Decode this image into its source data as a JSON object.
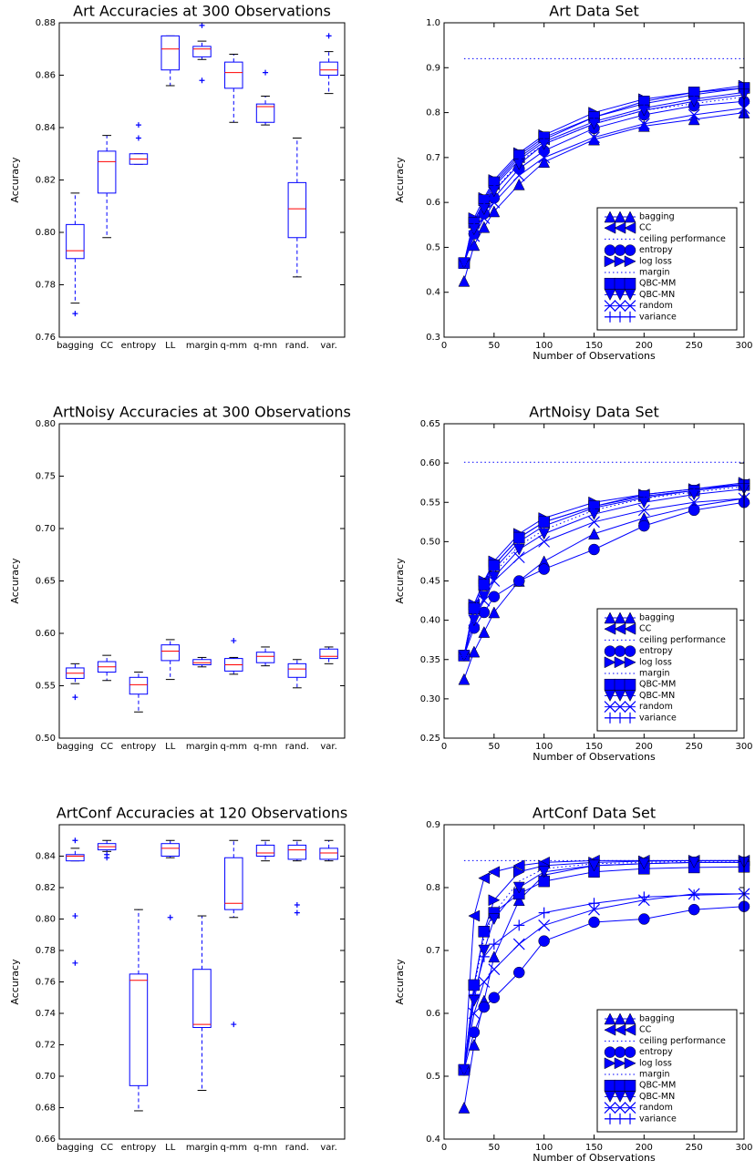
{
  "chart_data": [
    {
      "type": "box",
      "title": "Art Accuracies at 300 Observations",
      "ylabel": "Accuracy",
      "color": "#0000ff",
      "median_color": "#ff0000",
      "categories": [
        "bagging",
        "CC",
        "entropy",
        "LL",
        "margin",
        "q-mm",
        "q-mn",
        "rand.",
        "var."
      ],
      "boxes": [
        {
          "min": 0.773,
          "q1": 0.79,
          "median": 0.793,
          "q3": 0.803,
          "max": 0.815,
          "outliers": [
            0.769
          ]
        },
        {
          "min": 0.798,
          "q1": 0.815,
          "median": 0.827,
          "q3": 0.831,
          "max": 0.837
        },
        {
          "min": 0.826,
          "q1": 0.826,
          "median": 0.828,
          "q3": 0.83,
          "max": 0.83,
          "outliers": [
            0.836,
            0.841
          ]
        },
        {
          "min": 0.856,
          "q1": 0.862,
          "median": 0.87,
          "q3": 0.875,
          "max": 0.875
        },
        {
          "min": 0.866,
          "q1": 0.867,
          "median": 0.87,
          "q3": 0.871,
          "max": 0.873,
          "outliers": [
            0.858,
            0.879
          ]
        },
        {
          "min": 0.842,
          "q1": 0.855,
          "median": 0.861,
          "q3": 0.865,
          "max": 0.868
        },
        {
          "min": 0.841,
          "q1": 0.842,
          "median": 0.848,
          "q3": 0.849,
          "max": 0.852,
          "outliers": [
            0.861
          ]
        },
        {
          "min": 0.783,
          "q1": 0.798,
          "median": 0.809,
          "q3": 0.819,
          "max": 0.836
        },
        {
          "min": 0.853,
          "q1": 0.86,
          "median": 0.862,
          "q3": 0.865,
          "max": 0.869,
          "outliers": [
            0.875
          ]
        }
      ],
      "ylim": [
        0.76,
        0.88
      ],
      "yticks": [
        0.76,
        0.78,
        {
          "value": 0.8,
          "label": "0.80"
        },
        0.82,
        0.84,
        0.86,
        0.88
      ]
    },
    {
      "type": "line",
      "title": "Art Data Set",
      "xlabel": "Number of Observations",
      "ylabel": "Accuracy",
      "legend": "lower right",
      "x": [
        20,
        30,
        40,
        50,
        75,
        100,
        150,
        200,
        250,
        300
      ],
      "series": [
        {
          "name": "bagging",
          "color": "#0000ff",
          "marker": "triangle-up",
          "values": [
            0.425,
            0.505,
            0.545,
            0.58,
            0.64,
            0.69,
            0.74,
            0.77,
            0.785,
            0.8
          ]
        },
        {
          "name": "CC",
          "color": "#0000ff",
          "marker": "triangle-left",
          "values": [
            0.465,
            0.56,
            0.6,
            0.64,
            0.7,
            0.74,
            0.79,
            0.82,
            0.84,
            0.855
          ]
        },
        {
          "name": "ceiling performance",
          "color": "#0000ff",
          "marker": "none",
          "linestyle": "dotted",
          "values": [
            0.92,
            0.92,
            0.92,
            0.92,
            0.92,
            0.92,
            0.92,
            0.92,
            0.92,
            0.92
          ]
        },
        {
          "name": "entropy",
          "color": "#0000ff",
          "marker": "circle",
          "values": [
            0.465,
            0.53,
            0.575,
            0.61,
            0.675,
            0.715,
            0.765,
            0.795,
            0.815,
            0.825
          ]
        },
        {
          "name": "log loss",
          "color": "#0000ff",
          "marker": "triangle-right",
          "values": [
            0.465,
            0.565,
            0.61,
            0.65,
            0.71,
            0.75,
            0.8,
            0.83,
            0.845,
            0.86
          ]
        },
        {
          "name": "margin",
          "color": "#0000ff",
          "marker": "none",
          "linestyle": "dotted",
          "values": [
            0.465,
            0.545,
            0.59,
            0.625,
            0.69,
            0.73,
            0.775,
            0.805,
            0.82,
            0.835
          ]
        },
        {
          "name": "QBC-MM",
          "color": "#0000ff",
          "marker": "square",
          "values": [
            0.465,
            0.555,
            0.605,
            0.645,
            0.705,
            0.745,
            0.79,
            0.825,
            0.845,
            0.855
          ]
        },
        {
          "name": "QBC-MN",
          "color": "#0000ff",
          "marker": "triangle-down",
          "values": [
            0.465,
            0.54,
            0.585,
            0.625,
            0.685,
            0.73,
            0.775,
            0.805,
            0.825,
            0.84
          ]
        },
        {
          "name": "random",
          "color": "#0000ff",
          "marker": "x",
          "values": [
            0.465,
            0.525,
            0.565,
            0.6,
            0.66,
            0.7,
            0.745,
            0.775,
            0.795,
            0.81
          ]
        },
        {
          "name": "variance",
          "color": "#0000ff",
          "marker": "plus",
          "values": [
            0.465,
            0.55,
            0.595,
            0.635,
            0.695,
            0.735,
            0.78,
            0.81,
            0.83,
            0.845
          ]
        }
      ],
      "xlim": [
        0,
        300
      ],
      "xticks": [
        0,
        50,
        100,
        150,
        200,
        250,
        300
      ],
      "ylim": [
        0.3,
        1.0
      ],
      "yticks": [
        0.3,
        0.4,
        0.5,
        0.6,
        0.7,
        0.8,
        0.9,
        {
          "value": 1.0,
          "label": "1.0"
        }
      ]
    },
    {
      "type": "box",
      "title": "ArtNoisy Accuracies at 300 Observations",
      "ylabel": "Accuracy",
      "color": "#0000ff",
      "median_color": "#ff0000",
      "categories": [
        "bagging",
        "CC",
        "entropy",
        "LL",
        "margin",
        "q-mm",
        "q-mn",
        "rand.",
        "var."
      ],
      "boxes": [
        {
          "min": 0.552,
          "q1": 0.557,
          "median": 0.562,
          "q3": 0.567,
          "max": 0.571,
          "outliers": [
            0.539
          ]
        },
        {
          "min": 0.555,
          "q1": 0.563,
          "median": 0.568,
          "q3": 0.573,
          "max": 0.579
        },
        {
          "min": 0.525,
          "q1": 0.542,
          "median": 0.551,
          "q3": 0.558,
          "max": 0.563
        },
        {
          "min": 0.556,
          "q1": 0.574,
          "median": 0.583,
          "q3": 0.589,
          "max": 0.594
        },
        {
          "min": 0.568,
          "q1": 0.57,
          "median": 0.572,
          "q3": 0.575,
          "max": 0.577
        },
        {
          "min": 0.561,
          "q1": 0.564,
          "median": 0.57,
          "q3": 0.576,
          "max": 0.577,
          "outliers": [
            0.593
          ]
        },
        {
          "min": 0.569,
          "q1": 0.572,
          "median": 0.578,
          "q3": 0.582,
          "max": 0.587
        },
        {
          "min": 0.548,
          "q1": 0.558,
          "median": 0.566,
          "q3": 0.571,
          "max": 0.575
        },
        {
          "min": 0.571,
          "q1": 0.576,
          "median": 0.578,
          "q3": 0.585,
          "max": 0.587
        }
      ],
      "ylim": [
        0.5,
        0.8
      ],
      "yticks": [
        {
          "value": 0.5,
          "label": "0.50"
        },
        0.55,
        {
          "value": 0.6,
          "label": "0.60"
        },
        0.65,
        {
          "value": 0.7,
          "label": "0.70"
        },
        0.75,
        {
          "value": 0.8,
          "label": "0.80"
        }
      ]
    },
    {
      "type": "line",
      "title": "ArtNoisy Data Set",
      "xlabel": "Number of Observations",
      "ylabel": "Accuracy",
      "legend": "lower right",
      "x": [
        20,
        30,
        40,
        50,
        75,
        100,
        150,
        200,
        250,
        300
      ],
      "series": [
        {
          "name": "bagging",
          "color": "#0000ff",
          "marker": "triangle-up",
          "values": [
            0.325,
            0.36,
            0.385,
            0.41,
            0.45,
            0.475,
            0.51,
            0.53,
            0.545,
            0.555
          ]
        },
        {
          "name": "CC",
          "color": "#0000ff",
          "marker": "triangle-left",
          "values": [
            0.355,
            0.42,
            0.45,
            0.47,
            0.505,
            0.525,
            0.545,
            0.56,
            0.567,
            0.573
          ]
        },
        {
          "name": "ceiling performance",
          "color": "#0000ff",
          "marker": "none",
          "linestyle": "dotted",
          "values": [
            0.601,
            0.601,
            0.601,
            0.601,
            0.601,
            0.601,
            0.601,
            0.601,
            0.601,
            0.601
          ]
        },
        {
          "name": "entropy",
          "color": "#0000ff",
          "marker": "circle",
          "values": [
            0.355,
            0.39,
            0.41,
            0.43,
            0.45,
            0.465,
            0.49,
            0.52,
            0.54,
            0.55
          ]
        },
        {
          "name": "log loss",
          "color": "#0000ff",
          "marker": "triangle-right",
          "values": [
            0.355,
            0.42,
            0.45,
            0.475,
            0.51,
            0.53,
            0.55,
            0.56,
            0.567,
            0.575
          ]
        },
        {
          "name": "margin",
          "color": "#0000ff",
          "marker": "none",
          "linestyle": "dotted",
          "values": [
            0.355,
            0.41,
            0.44,
            0.46,
            0.495,
            0.515,
            0.54,
            0.555,
            0.563,
            0.57
          ]
        },
        {
          "name": "QBC-MM",
          "color": "#0000ff",
          "marker": "square",
          "values": [
            0.355,
            0.415,
            0.445,
            0.47,
            0.505,
            0.525,
            0.545,
            0.558,
            0.565,
            0.572
          ]
        },
        {
          "name": "QBC-MN",
          "color": "#0000ff",
          "marker": "triangle-down",
          "values": [
            0.355,
            0.4,
            0.43,
            0.455,
            0.49,
            0.51,
            0.535,
            0.55,
            0.56,
            0.567
          ]
        },
        {
          "name": "random",
          "color": "#0000ff",
          "marker": "x",
          "values": [
            0.355,
            0.4,
            0.425,
            0.45,
            0.48,
            0.5,
            0.525,
            0.54,
            0.55,
            0.555
          ]
        },
        {
          "name": "variance",
          "color": "#0000ff",
          "marker": "plus",
          "values": [
            0.355,
            0.415,
            0.445,
            0.465,
            0.5,
            0.52,
            0.543,
            0.556,
            0.565,
            0.573
          ]
        }
      ],
      "xlim": [
        0,
        300
      ],
      "xticks": [
        0,
        50,
        100,
        150,
        200,
        250,
        300
      ],
      "ylim": [
        0.25,
        0.65
      ],
      "yticks": [
        0.25,
        {
          "value": 0.3,
          "label": "0.30"
        },
        0.35,
        {
          "value": 0.4,
          "label": "0.40"
        },
        0.45,
        {
          "value": 0.5,
          "label": "0.50"
        },
        0.55,
        {
          "value": 0.6,
          "label": "0.60"
        },
        0.65
      ]
    },
    {
      "type": "box",
      "title": "ArtConf Accuracies at 120 Observations",
      "ylabel": "Accuracy",
      "color": "#0000ff",
      "median_color": "#ff0000",
      "categories": [
        "bagging",
        "CC",
        "entropy",
        "LL",
        "margin",
        "q-mm",
        "q-mn",
        "rand.",
        "var."
      ],
      "boxes": [
        {
          "min": 0.837,
          "q1": 0.837,
          "median": 0.84,
          "q3": 0.841,
          "max": 0.845,
          "outliers": [
            0.772,
            0.802,
            0.85
          ]
        },
        {
          "min": 0.843,
          "q1": 0.844,
          "median": 0.846,
          "q3": 0.848,
          "max": 0.85,
          "outliers": [
            0.839,
            0.841
          ]
        },
        {
          "min": 0.678,
          "q1": 0.694,
          "median": 0.761,
          "q3": 0.765,
          "max": 0.806
        },
        {
          "min": 0.839,
          "q1": 0.84,
          "median": 0.845,
          "q3": 0.848,
          "max": 0.85,
          "outliers": [
            0.801
          ]
        },
        {
          "min": 0.691,
          "q1": 0.731,
          "median": 0.733,
          "q3": 0.768,
          "max": 0.802
        },
        {
          "min": 0.801,
          "q1": 0.806,
          "median": 0.81,
          "q3": 0.839,
          "max": 0.85,
          "outliers": [
            0.733
          ]
        },
        {
          "min": 0.837,
          "q1": 0.84,
          "median": 0.842,
          "q3": 0.847,
          "max": 0.85
        },
        {
          "min": 0.837,
          "q1": 0.838,
          "median": 0.844,
          "q3": 0.847,
          "max": 0.85,
          "outliers": [
            0.804,
            0.809
          ]
        },
        {
          "min": 0.837,
          "q1": 0.838,
          "median": 0.842,
          "q3": 0.845,
          "max": 0.85
        }
      ],
      "ylim": [
        0.66,
        0.86
      ],
      "yticks": [
        0.66,
        0.68,
        {
          "value": 0.7,
          "label": "0.70"
        },
        0.72,
        0.74,
        0.76,
        0.78,
        {
          "value": 0.8,
          "label": "0.80"
        },
        0.82,
        0.84
      ]
    },
    {
      "type": "line",
      "title": "ArtConf Data Set",
      "xlabel": "Number of Observations",
      "ylabel": "Accuracy",
      "legend": "lower right",
      "x": [
        20,
        30,
        40,
        50,
        75,
        100,
        150,
        200,
        250,
        300
      ],
      "series": [
        {
          "name": "bagging",
          "color": "#0000ff",
          "marker": "triangle-up",
          "values": [
            0.45,
            0.55,
            0.62,
            0.69,
            0.78,
            0.82,
            0.835,
            0.838,
            0.84,
            0.84
          ]
        },
        {
          "name": "CC",
          "color": "#0000ff",
          "marker": "triangle-left",
          "values": [
            0.51,
            0.755,
            0.815,
            0.825,
            0.835,
            0.84,
            0.843,
            0.843,
            0.843,
            0.843
          ]
        },
        {
          "name": "ceiling performance",
          "color": "#0000ff",
          "marker": "none",
          "linestyle": "dotted",
          "values": [
            0.843,
            0.843,
            0.843,
            0.843,
            0.843,
            0.843,
            0.843,
            0.843,
            0.843,
            0.843
          ]
        },
        {
          "name": "entropy",
          "color": "#0000ff",
          "marker": "circle",
          "values": [
            0.51,
            0.57,
            0.61,
            0.625,
            0.665,
            0.715,
            0.745,
            0.75,
            0.765,
            0.77
          ]
        },
        {
          "name": "log loss",
          "color": "#0000ff",
          "marker": "triangle-right",
          "values": [
            0.51,
            0.645,
            0.73,
            0.78,
            0.825,
            0.835,
            0.84,
            0.842,
            0.843,
            0.843
          ]
        },
        {
          "name": "margin",
          "color": "#0000ff",
          "marker": "none",
          "linestyle": "dotted",
          "values": [
            0.51,
            0.64,
            0.72,
            0.76,
            0.81,
            0.83,
            0.838,
            0.84,
            0.842,
            0.842
          ]
        },
        {
          "name": "QBC-MM",
          "color": "#0000ff",
          "marker": "square",
          "values": [
            0.51,
            0.645,
            0.73,
            0.76,
            0.79,
            0.81,
            0.825,
            0.83,
            0.832,
            0.833
          ]
        },
        {
          "name": "QBC-MN",
          "color": "#0000ff",
          "marker": "triangle-down",
          "values": [
            0.51,
            0.62,
            0.7,
            0.75,
            0.8,
            0.825,
            0.835,
            0.838,
            0.84,
            0.84
          ]
        },
        {
          "name": "random",
          "color": "#0000ff",
          "marker": "x",
          "values": [
            0.51,
            0.6,
            0.65,
            0.67,
            0.71,
            0.74,
            0.765,
            0.78,
            0.79,
            0.79
          ]
        },
        {
          "name": "variance",
          "color": "#0000ff",
          "marker": "plus",
          "values": [
            0.51,
            0.63,
            0.69,
            0.71,
            0.74,
            0.76,
            0.775,
            0.785,
            0.788,
            0.79
          ]
        }
      ],
      "xlim": [
        0,
        300
      ],
      "xticks": [
        0,
        50,
        100,
        150,
        200,
        250,
        300
      ],
      "ylim": [
        0.4,
        0.9
      ],
      "yticks": [
        0.4,
        0.5,
        0.6,
        0.7,
        0.8,
        0.9
      ]
    }
  ]
}
